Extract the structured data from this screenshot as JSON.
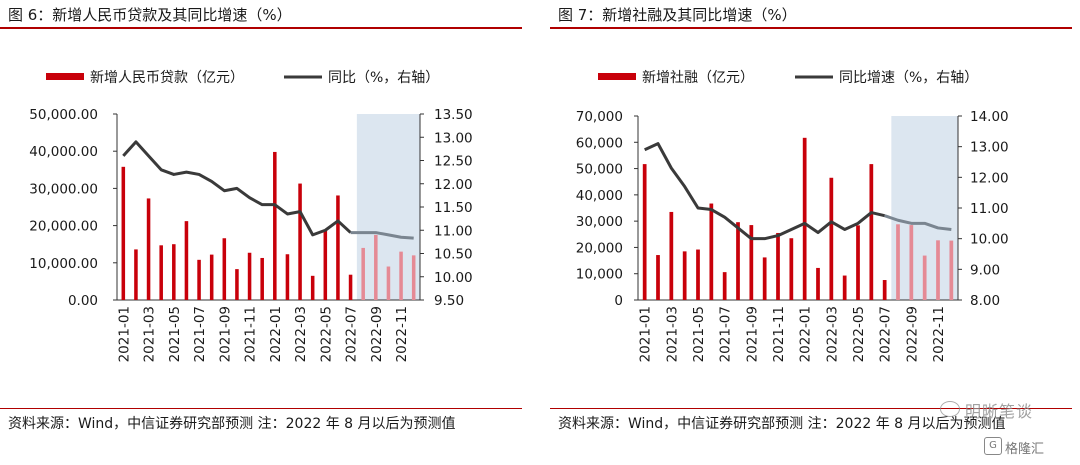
{
  "chart_data": [
    {
      "type": "bar+line",
      "title": "图 6：新增人民币贷款及其同比增速（%）",
      "legend": {
        "bar_label": "新增人民币贷款（亿元）",
        "line_label": "同比（%，右轴）",
        "placement": "top"
      },
      "categories": [
        "2021-01",
        "2021-02",
        "2021-03",
        "2021-04",
        "2021-05",
        "2021-06",
        "2021-07",
        "2021-08",
        "2021-09",
        "2021-10",
        "2021-11",
        "2021-12",
        "2022-01",
        "2022-02",
        "2022-03",
        "2022-04",
        "2022-05",
        "2022-06",
        "2022-07",
        "2022-08",
        "2022-09",
        "2022-10",
        "2022-11",
        "2022-12"
      ],
      "x_tick_labels": [
        "2021-01",
        "2021-03",
        "2021-05",
        "2021-07",
        "2021-09",
        "2021-11",
        "2022-01",
        "2022-03",
        "2022-05",
        "2022-07",
        "2022-09",
        "2022-11"
      ],
      "forecast_start_index": 19,
      "series": [
        {
          "name": "新增人民币贷款（亿元）",
          "axis": "left",
          "kind": "bar",
          "values": [
            35800,
            13600,
            27300,
            14700,
            15000,
            21200,
            10800,
            12200,
            16600,
            8300,
            12700,
            11300,
            39800,
            12300,
            31300,
            6500,
            18900,
            28100,
            6800,
            14000,
            17500,
            9000,
            13000,
            12000
          ]
        },
        {
          "name": "同比（%，右轴）",
          "axis": "right",
          "kind": "line",
          "values": [
            12.6,
            12.9,
            12.6,
            12.3,
            12.2,
            12.25,
            12.2,
            12.05,
            11.85,
            11.9,
            11.7,
            11.55,
            11.55,
            11.35,
            11.4,
            10.9,
            11.0,
            11.2,
            10.95,
            10.95,
            10.95,
            10.9,
            10.85,
            10.83
          ]
        }
      ],
      "left_axis": {
        "min": 0,
        "max": 50000,
        "ticks": [
          "0.00",
          "10,000.00",
          "20,000.00",
          "30,000.00",
          "40,000.00",
          "50,000.00"
        ]
      },
      "right_axis": {
        "min": 9.5,
        "max": 13.5,
        "ticks": [
          "9.50",
          "10.00",
          "10.50",
          "11.00",
          "11.50",
          "12.00",
          "12.50",
          "13.00",
          "13.50"
        ]
      },
      "source": "资料来源：Wind，中信证券研究部预测  注：2022 年 8 月以后为预测值"
    },
    {
      "type": "bar+line",
      "title": "图 7：新增社融及其同比增速（%）",
      "legend": {
        "bar_label": "新增社融（亿元）",
        "line_label": "同比增速（%，右轴）",
        "placement": "top"
      },
      "categories": [
        "2021-01",
        "2021-02",
        "2021-03",
        "2021-04",
        "2021-05",
        "2021-06",
        "2021-07",
        "2021-08",
        "2021-09",
        "2021-10",
        "2021-11",
        "2021-12",
        "2022-01",
        "2022-02",
        "2022-03",
        "2022-04",
        "2022-05",
        "2022-06",
        "2022-07",
        "2022-08",
        "2022-09",
        "2022-10",
        "2022-11",
        "2022-12"
      ],
      "x_tick_labels": [
        "2021-01",
        "2021-03",
        "2021-05",
        "2021-07",
        "2021-09",
        "2021-11",
        "2022-01",
        "2022-03",
        "2022-05",
        "2022-07",
        "2022-09",
        "2022-11"
      ],
      "forecast_start_index": 19,
      "series": [
        {
          "name": "新增社融（亿元）",
          "axis": "left",
          "kind": "bar",
          "values": [
            51700,
            17100,
            33500,
            18500,
            19200,
            36700,
            10600,
            29600,
            28500,
            16200,
            25500,
            23500,
            61700,
            12200,
            46500,
            9300,
            28400,
            51700,
            7600,
            28800,
            28500,
            16900,
            22700,
            22600
          ]
        },
        {
          "name": "同比增速（%，右轴）",
          "axis": "right",
          "kind": "line",
          "values": [
            12.9,
            13.1,
            12.3,
            11.7,
            11.0,
            10.95,
            10.7,
            10.35,
            10.0,
            10.0,
            10.1,
            10.3,
            10.5,
            10.2,
            10.55,
            10.3,
            10.5,
            10.85,
            10.75,
            10.6,
            10.5,
            10.5,
            10.35,
            10.3
          ]
        }
      ],
      "left_axis": {
        "min": 0,
        "max": 70000,
        "ticks": [
          "0",
          "10,000",
          "20,000",
          "30,000",
          "40,000",
          "50,000",
          "60,000",
          "70,000"
        ]
      },
      "right_axis": {
        "min": 8.0,
        "max": 14.0,
        "ticks": [
          "8.00",
          "9.00",
          "10.00",
          "11.00",
          "12.00",
          "13.00",
          "14.00"
        ]
      },
      "source": "资料来源：Wind，中信证券研究部预测  注：2022 年 8 月以后为预测值"
    }
  ],
  "watermark": "明晰笔谈",
  "brand": "格隆汇",
  "brand_icon": "G",
  "colors": {
    "bar": "#c8000a",
    "bar_forecast": "#e58a95",
    "line": "#3a3a3a",
    "line_forecast": "#7a8590",
    "forecast_bg": "#dce6f0",
    "rule": "#b00000"
  }
}
